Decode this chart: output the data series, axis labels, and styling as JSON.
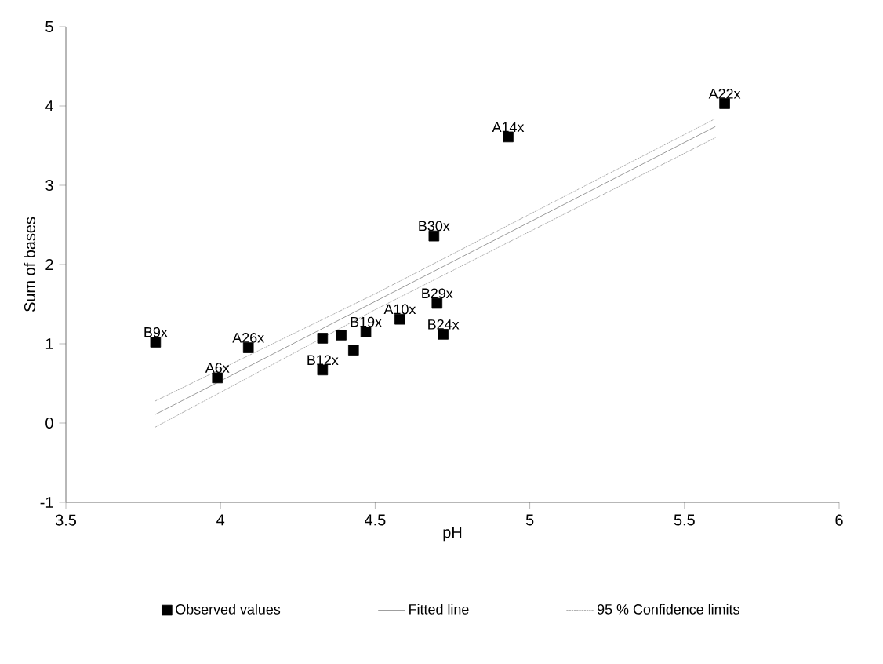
{
  "chart_data": {
    "type": "scatter",
    "xlabel": "pH",
    "ylabel": "Sum of bases",
    "xlim": [
      3.5,
      6
    ],
    "ylim": [
      -1,
      5
    ],
    "xticks": [
      3.5,
      4,
      4.5,
      5,
      5.5,
      6
    ],
    "yticks": [
      -1,
      0,
      1,
      2,
      3,
      4,
      5
    ],
    "legend": "bottom",
    "series": [
      {
        "type": "scatter",
        "name": "Observed values",
        "color": "#000000",
        "marker": "square",
        "x": [
          3.79,
          3.99,
          4.09,
          4.33,
          4.33,
          4.39,
          4.43,
          4.47,
          4.58,
          4.7,
          4.72,
          4.69,
          4.93,
          5.63
        ],
        "values": [
          1.02,
          0.57,
          0.95,
          1.07,
          0.67,
          1.11,
          0.92,
          1.15,
          1.31,
          1.51,
          1.12,
          2.36,
          3.61,
          4.03
        ]
      },
      {
        "type": "line",
        "name": "Fitted line",
        "color": "#808080",
        "line_style": "solid",
        "x": [
          3.79,
          5.6
        ],
        "values": [
          0.11,
          3.74
        ]
      },
      {
        "type": "line",
        "name": "95 % Confidence limits",
        "color": "#999999",
        "line_style": "dotted",
        "x": [
          3.79,
          4.5,
          5.6
        ],
        "values": [
          0.28,
          1.63,
          3.84
        ]
      },
      {
        "type": "line",
        "color": "#999999",
        "line_style": "dotted",
        "x": [
          3.79,
          4.5,
          5.6
        ],
        "values": [
          -0.05,
          1.43,
          3.6
        ]
      }
    ],
    "annotations": [
      {
        "text": "B9x",
        "x": 3.79,
        "y": 1.02
      },
      {
        "text": "A6x",
        "x": 3.99,
        "y": 0.57
      },
      {
        "text": "A26x",
        "x": 4.09,
        "y": 0.95
      },
      {
        "text": "B12x",
        "x": 4.33,
        "y": 0.67
      },
      {
        "text": "B19x",
        "x": 4.47,
        "y": 1.15
      },
      {
        "text": "A10x",
        "x": 4.58,
        "y": 1.31
      },
      {
        "text": "B29x",
        "x": 4.7,
        "y": 1.51
      },
      {
        "text": "B24x",
        "x": 4.72,
        "y": 1.12
      },
      {
        "text": "B30x",
        "x": 4.69,
        "y": 2.36
      },
      {
        "text": "A14x",
        "x": 4.93,
        "y": 3.61
      },
      {
        "text": "A22x",
        "x": 5.63,
        "y": 4.03
      }
    ]
  }
}
